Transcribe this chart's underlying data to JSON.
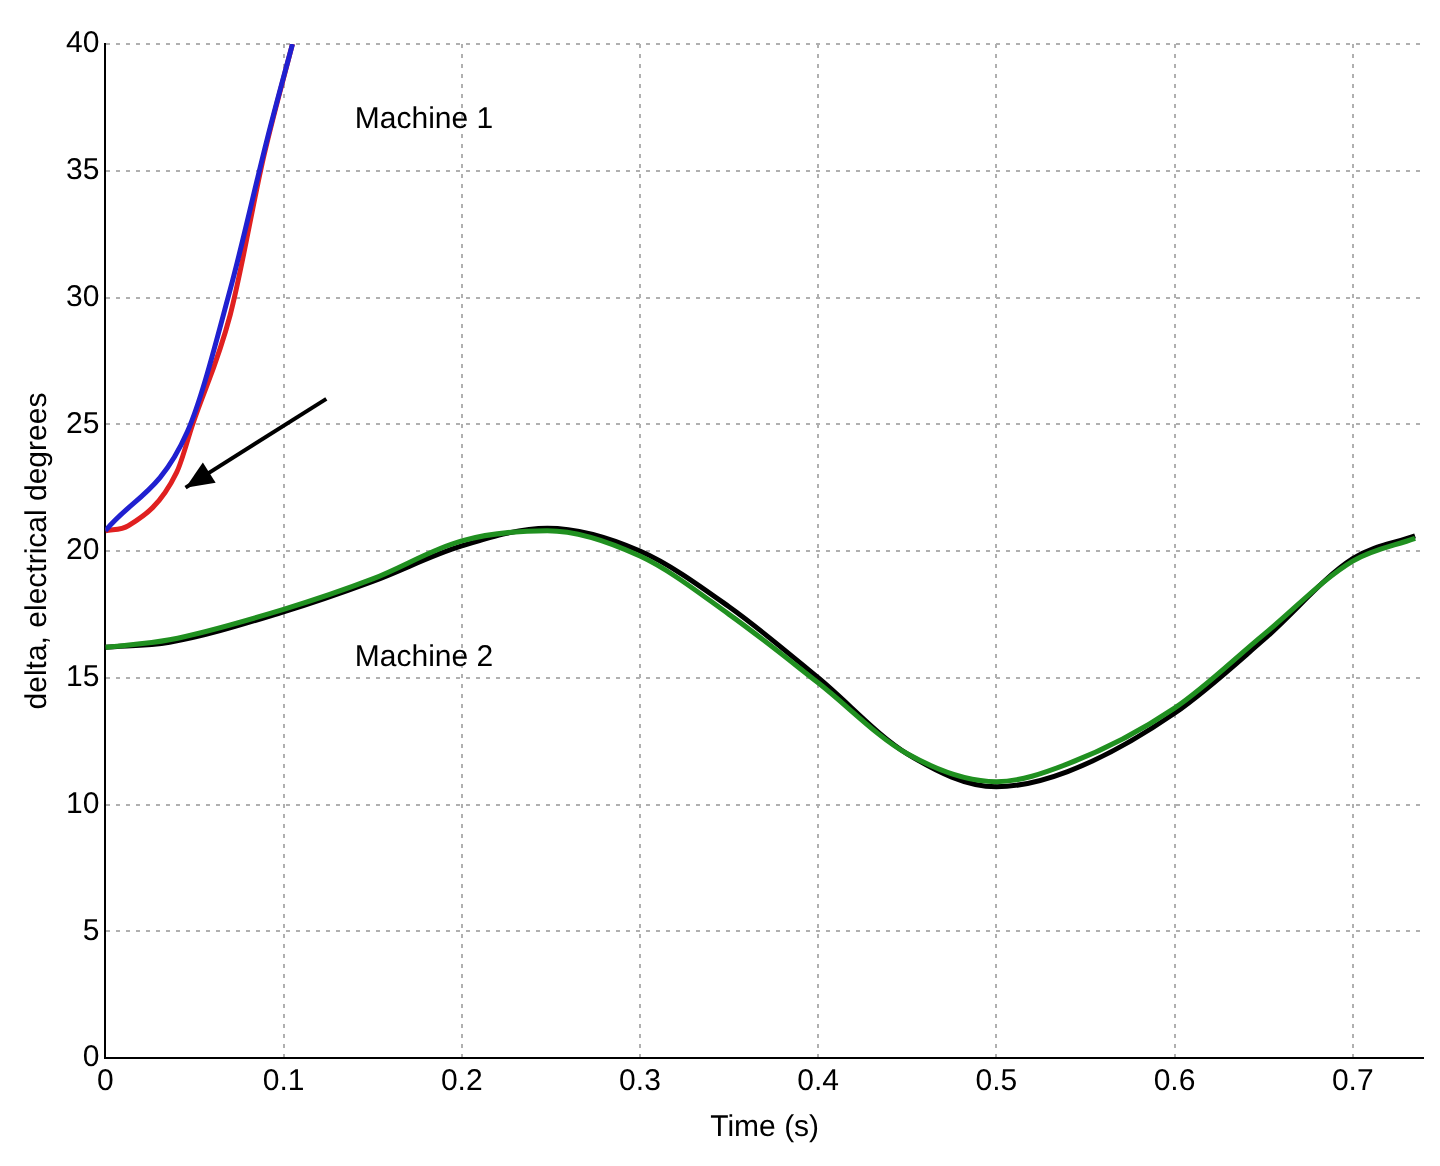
{
  "chart_data": {
    "type": "line",
    "xlabel": "Time (s)",
    "ylabel": "delta, electrical degrees",
    "xlim": [
      0,
      0.74
    ],
    "xticks": [
      0,
      0.1,
      0.2,
      0.3,
      0.4,
      0.5,
      0.6,
      0.7
    ],
    "ylim": [
      0,
      40
    ],
    "yticks": [
      0,
      5,
      10,
      15,
      20,
      25,
      30,
      35,
      40
    ],
    "grid": true,
    "legend": false,
    "marker": "none",
    "line_style": "solid",
    "annotations": [
      "Machine 1",
      "Machine 2"
    ],
    "series": [
      {
        "color": "#2020d0",
        "x": [
          0,
          0.046,
          0.07,
          0.091,
          0.105
        ],
        "values": [
          20.8,
          24.7,
          30.3,
          36.3,
          40
        ]
      },
      {
        "color": "#e02020",
        "x": [
          0,
          0.013,
          0.04,
          0.049,
          0.07,
          0.089,
          0.105
        ],
        "values": [
          20.8,
          21,
          23.1,
          25,
          29.3,
          35.6,
          40
        ]
      },
      {
        "color": "#209020",
        "x": [
          0,
          0.036,
          0.1,
          0.15,
          0.2,
          0.248,
          0.3,
          0.35,
          0.4,
          0.45,
          0.5,
          0.54,
          0.6,
          0.65,
          0.7,
          0.735
        ],
        "values": [
          16.2,
          16.5,
          17.7,
          18.9,
          20.4,
          20.8,
          19.8,
          17.5,
          14.8,
          12,
          10.9,
          11.6,
          13.8,
          16.7,
          19.6,
          20.5
        ]
      },
      {
        "color": "#000000",
        "x": [
          0,
          0.036,
          0.1,
          0.15,
          0.2,
          0.248,
          0.3,
          0.35,
          0.4,
          0.45,
          0.5,
          0.54,
          0.6,
          0.65,
          0.7,
          0.735
        ],
        "values": [
          16.2,
          16.4,
          17.6,
          18.8,
          20.2,
          20.9,
          20,
          17.8,
          15,
          12,
          10.7,
          11.3,
          13.6,
          16.5,
          19.7,
          20.6
        ]
      }
    ]
  }
}
